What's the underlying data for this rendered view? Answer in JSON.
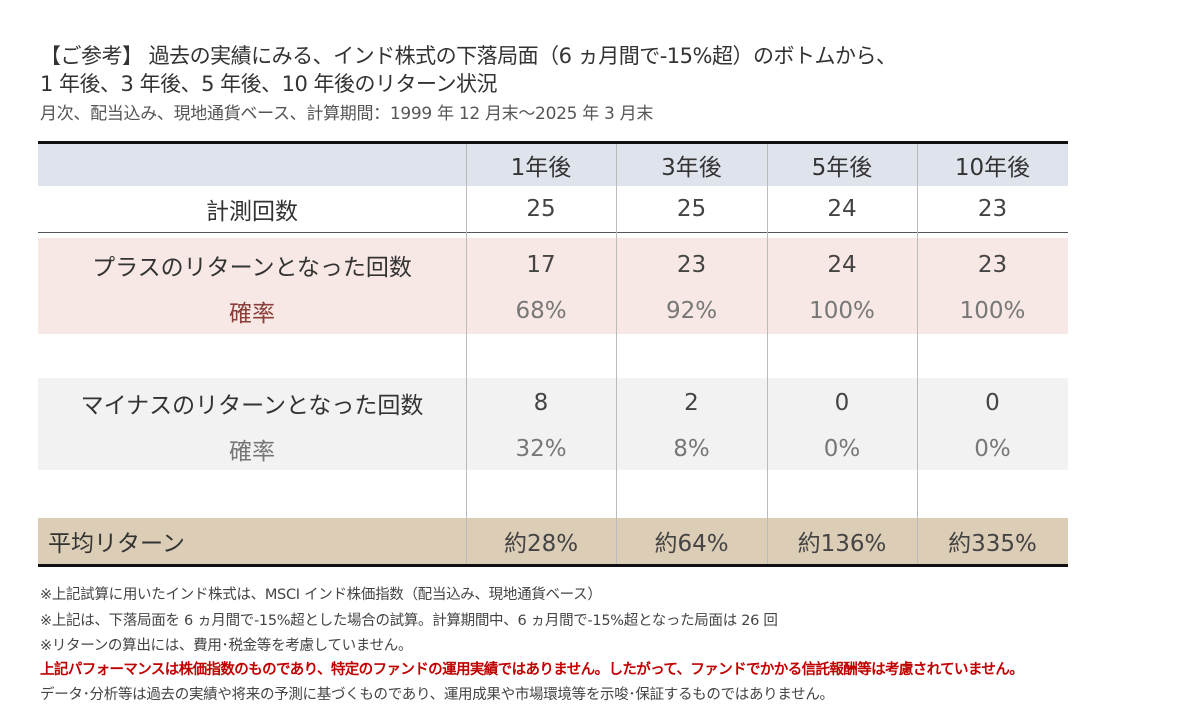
{
  "title": {
    "line1": "【ご参考】 過去の実績にみる、インド株式の下落局面（6 ヵ月間で-15%超）のボトムから、",
    "line2": "1 年後、3 年後、5 年後、10 年後のリターン状況",
    "subtitle": "月次、配当込み、現地通貨ベース、計算期間：1999 年 12 月末～2025 年 3 月末"
  },
  "table": {
    "columns": [
      "1年後",
      "3年後",
      "5年後",
      "10年後"
    ],
    "rows": [
      {
        "label": "計測回数",
        "values": [
          "25",
          "25",
          "24",
          "23"
        ]
      },
      {
        "label": "プラスのリターンとなった回数",
        "values": [
          "17",
          "23",
          "24",
          "23"
        ]
      },
      {
        "label": "確率",
        "values": [
          "68%",
          "92%",
          "100%",
          "100%"
        ]
      },
      {
        "label": "マイナスのリターンとなった回数",
        "values": [
          "8",
          "2",
          "0",
          "0"
        ]
      },
      {
        "label": "確率",
        "values": [
          "32%",
          "8%",
          "0%",
          "0%"
        ]
      },
      {
        "label": "平均リターン",
        "values": [
          "約28%",
          "約64%",
          "約136%",
          "約335%"
        ]
      }
    ]
  },
  "notes": [
    "※上記試算に用いたインド株式は、MSCI インド株価指数（配当込み、現地通貨ベース）",
    "※上記は、下落局面を 6 ヵ月間で-15%超とした場合の試算。計算期間中、6 ヵ月間で-15%超となった局面は 26 回",
    "※リターンの算出には、費用･税金等を考慮していません。",
    "上記パフォーマンスは株価指数のものであり、特定のファンドの運用実績ではありません。したがって、ファンドでかかる信託報酬等は考慮されていません。",
    "データ･分析等は過去の実績や将来の予測に基づくものであり、運用成果や市場環境等を示唆･保証するものではありません。"
  ],
  "colors": {
    "header": "#dfe3eb",
    "plus": "#f7e8e5",
    "minus": "#f2f2f2",
    "average": "#dccdb6",
    "warning": "#c00000",
    "plus_rate": "#8b3f3a"
  }
}
